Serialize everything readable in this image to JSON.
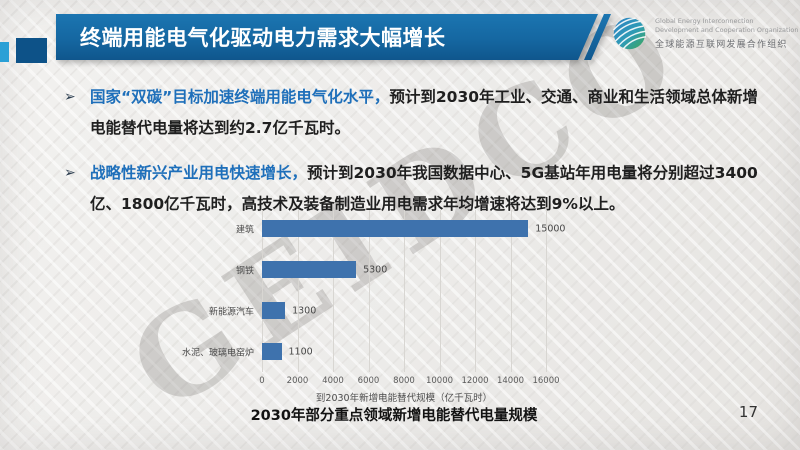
{
  "slide": {
    "title": "终端用能电气化驱动电力需求大幅增长",
    "caption": "2030年部分重点领域新增电能替代电量规模",
    "page_number": "17",
    "watermark": "GEIDCO"
  },
  "logo": {
    "name_en_line1": "Global Energy Interconnection",
    "name_en_line2": "Development and Cooperation Organization",
    "name_zh": "全球能源互联网发展合作组织"
  },
  "bullets": [
    {
      "marker": "➢",
      "highlight": "国家“双碳”目标加速终端用能电气化水平，",
      "text": "预计到2030年工业、交通、商业和生活领域总体新增电能替代电量将达到约2.7亿千瓦时。"
    },
    {
      "marker": "➢",
      "highlight": "战略性新兴产业用电快速增长，",
      "text": "预计到2030年我国数据中心、5G基站年用电量将分别超过3400亿、1800亿千瓦时，高技术及装备制造业用电需求年均增速将达到9%以上。"
    }
  ],
  "chart_data": {
    "type": "bar",
    "orientation": "horizontal",
    "categories": [
      "建筑",
      "钢铁",
      "新能源汽车",
      "水泥、玻璃电窑炉"
    ],
    "values": [
      15000,
      5300,
      1300,
      1100
    ],
    "xlabel": "到2030年新增电能替代规模（亿千瓦时）",
    "x_ticks": [
      0,
      2000,
      4000,
      6000,
      8000,
      10000,
      12000,
      14000,
      16000
    ],
    "xlim": [
      0,
      16000
    ],
    "grid": true,
    "legend": false,
    "bar_color": "#3e72ad"
  },
  "colors": {
    "header-blue": "#1567a1",
    "accent-dark": "#0d5288",
    "accent-light": "#2aa0d6",
    "highlight-blue": "#1e6fba",
    "bar-blue": "#3e72ad",
    "text-dark": "#1f1f1f",
    "grid-gray": "#d8d6d2"
  }
}
